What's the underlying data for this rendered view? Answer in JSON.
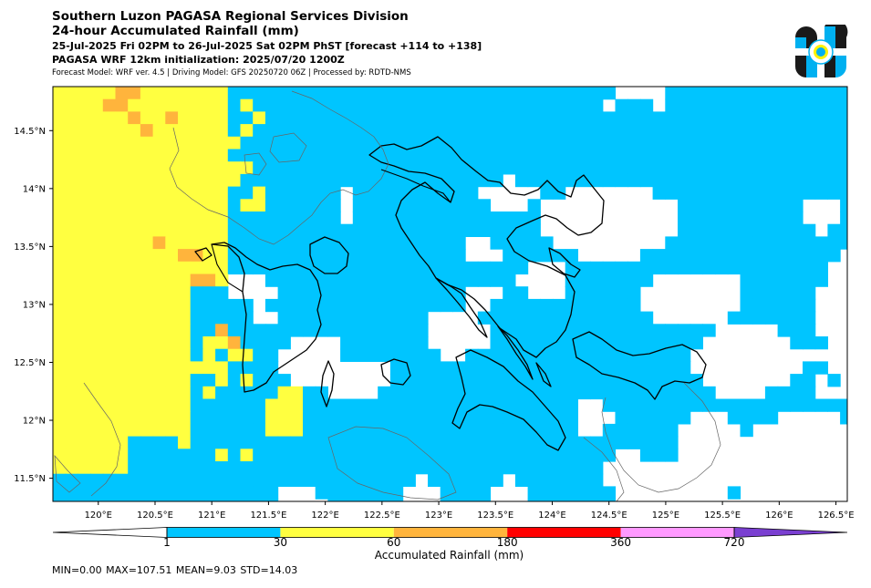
{
  "header": {
    "line1": "Southern Luzon PAGASA Regional Services Division",
    "line2": "24-hour Accumulated Rainfall (mm)",
    "line3": "25-Jul-2025 Fri 02PM to 26-Jul-2025 Sat 02PM PhST [forecast +114 to +138]",
    "line4": "PAGASA WRF 12km initialization: 2025/07/20 1200Z",
    "line5": "Forecast Model: WRF ver. 4.5 | Driving Model: GFS 20250720 06Z | Processed by: RDTD-NMS"
  },
  "logo": {
    "name": "pagasa-logo",
    "colors": [
      "#1a1a1a",
      "#00b0f0",
      "#ffffff",
      "#fff200"
    ]
  },
  "map": {
    "lon_labels": [
      "120°E",
      "120.5°E",
      "121°E",
      "121.5°E",
      "122°E",
      "122.5°E",
      "123°E",
      "123.5°E",
      "124°E",
      "124.5°E",
      "125°E",
      "125.5°E",
      "126°E",
      "126.5°E"
    ],
    "lat_labels": [
      "14.5°N",
      "14°N",
      "13.5°N",
      "13°N",
      "12.5°N",
      "12°N",
      "11.5°N"
    ],
    "lon_range": [
      119.6,
      126.6
    ],
    "lat_range": [
      11.3,
      14.88
    ],
    "region_boundary_color": "#000000",
    "coastline_color": "#555555"
  },
  "colorbar": {
    "title": "Accumulated Rainfall (mm)",
    "labels": [
      "1",
      "30",
      "60",
      "180",
      "360",
      "720"
    ],
    "segments": [
      {
        "from": "1",
        "to": "30",
        "color": "#00c5ff"
      },
      {
        "from": "30",
        "to": "60",
        "color": "#ffff40"
      },
      {
        "from": "60",
        "to": "180",
        "color": "#ffb43c"
      },
      {
        "from": "180",
        "to": "360",
        "color": "#ff0000"
      },
      {
        "from": "360",
        "to": "720",
        "color": "#ff99ff"
      }
    ],
    "under_color": "#ffffff",
    "over_color": "#7a3fd1"
  },
  "stats": "MIN=0.00   MAX=107.51   MEAN=9.03   STD=14.03"
}
